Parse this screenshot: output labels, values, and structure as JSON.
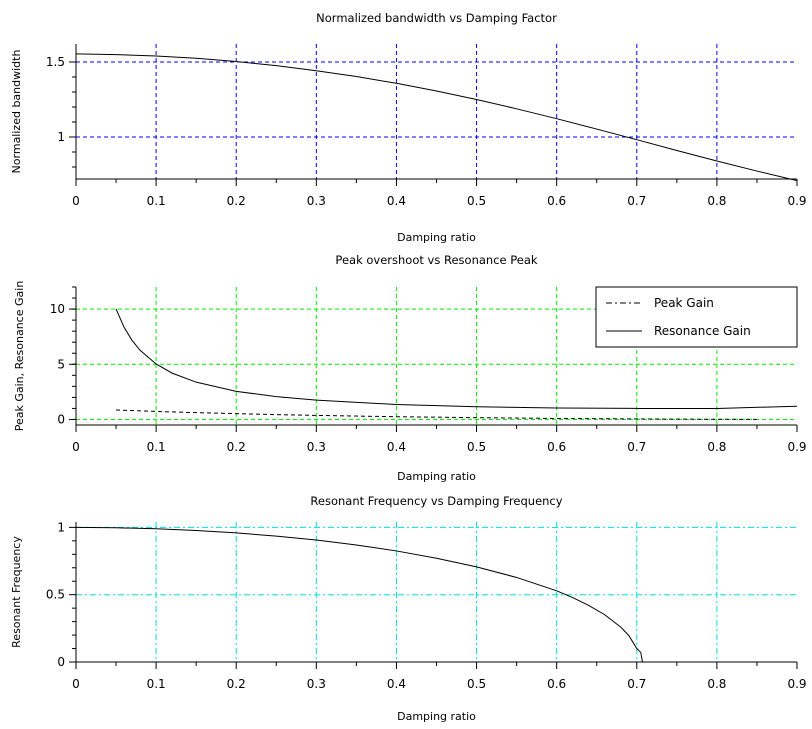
{
  "chart_data": [
    {
      "type": "line",
      "title": "Normalized bandwidth vs Damping Factor",
      "xlabel": "Damping ratio",
      "ylabel": "Normalized bandwidth",
      "xlim": [
        0,
        0.9
      ],
      "ylim": [
        0.72,
        1.62
      ],
      "x_ticks": [
        "0",
        "0.1",
        "0.2",
        "0.3",
        "0.4",
        "0.5",
        "0.6",
        "0.7",
        "0.8",
        "0.9"
      ],
      "y_ticks": [
        {
          "value": 1,
          "label": "1"
        },
        {
          "value": 1.5,
          "label": "1.5"
        }
      ],
      "grid": true,
      "grid_color": "#0000ff",
      "grid_style": "dashed",
      "legend": null,
      "series": [
        {
          "color": "#000000",
          "style": "solid",
          "x": [
            0,
            0.05,
            0.1,
            0.15,
            0.2,
            0.25,
            0.3,
            0.35,
            0.4,
            0.45,
            0.5,
            0.55,
            0.6,
            0.65,
            0.7,
            0.75,
            0.8,
            0.85,
            0.9
          ],
          "y": [
            1.554,
            1.549,
            1.54,
            1.525,
            1.503,
            1.476,
            1.442,
            1.403,
            1.358,
            1.307,
            1.25,
            1.188,
            1.122,
            1.053,
            0.982,
            0.91,
            0.84,
            0.773,
            0.709
          ]
        }
      ]
    },
    {
      "type": "line",
      "title": "Peak overshoot  vs  Resonance Peak",
      "xlabel": "Damping ratio",
      "ylabel": "Peak Gain, Resonance Gain",
      "xlim": [
        0,
        0.9
      ],
      "ylim": [
        -0.5,
        12
      ],
      "x_ticks": [
        "0",
        "0.1",
        "0.2",
        "0.3",
        "0.4",
        "0.5",
        "0.6",
        "0.7",
        "0.8",
        "0.9"
      ],
      "y_ticks": [
        {
          "value": 0,
          "label": "0"
        },
        {
          "value": 5,
          "label": "5"
        },
        {
          "value": 10,
          "label": "10"
        }
      ],
      "grid": true,
      "grid_color": "#00ee00",
      "grid_style": "dashed",
      "legend": "top-right",
      "series": [
        {
          "name": "Peak Gain",
          "color": "#000000",
          "style": "dashed",
          "x": [
            0.05,
            0.1,
            0.15,
            0.2,
            0.25,
            0.3,
            0.35,
            0.4,
            0.45,
            0.5,
            0.55,
            0.6,
            0.65,
            0.7,
            0.75,
            0.8,
            0.85
          ],
          "y": [
            0.855,
            0.73,
            0.62,
            0.53,
            0.44,
            0.37,
            0.31,
            0.25,
            0.21,
            0.16,
            0.13,
            0.09,
            0.07,
            0.05,
            0.03,
            0.02,
            0.01
          ]
        },
        {
          "name": "Resonance Gain",
          "color": "#000000",
          "style": "solid",
          "x": [
            0.05,
            0.06,
            0.07,
            0.08,
            0.1,
            0.12,
            0.15,
            0.2,
            0.25,
            0.3,
            0.4,
            0.5,
            0.6,
            0.7,
            0.8,
            0.9
          ],
          "y": [
            10.01,
            8.35,
            7.16,
            6.27,
            5.03,
            4.2,
            3.38,
            2.55,
            2.07,
            1.75,
            1.36,
            1.15,
            1.04,
            1.0,
            1.0,
            1.2
          ]
        }
      ]
    },
    {
      "type": "line",
      "title": "Resonant Frequency vs Damping Frequency",
      "xlabel": "Damping ratio",
      "ylabel": "Resonant Frequency",
      "xlim": [
        0,
        0.9
      ],
      "ylim": [
        0,
        1.04
      ],
      "x_ticks": [
        "0",
        "0.1",
        "0.2",
        "0.3",
        "0.4",
        "0.5",
        "0.6",
        "0.7",
        "0.8",
        "0.9"
      ],
      "y_ticks": [
        {
          "value": 0,
          "label": "0"
        },
        {
          "value": 0.5,
          "label": "0.5"
        },
        {
          "value": 1,
          "label": "1"
        }
      ],
      "grid": true,
      "grid_color": "#00dddd",
      "grid_style": "dashdot",
      "legend": null,
      "series": [
        {
          "color": "#000000",
          "style": "solid",
          "x": [
            0,
            0.05,
            0.1,
            0.15,
            0.2,
            0.25,
            0.3,
            0.35,
            0.4,
            0.45,
            0.5,
            0.55,
            0.6,
            0.62,
            0.64,
            0.66,
            0.68,
            0.69,
            0.7,
            0.705,
            0.7071
          ],
          "y": [
            1.0,
            0.997,
            0.99,
            0.977,
            0.959,
            0.935,
            0.906,
            0.869,
            0.825,
            0.771,
            0.707,
            0.628,
            0.529,
            0.479,
            0.42,
            0.351,
            0.259,
            0.197,
            0.1,
            0.071,
            0.0
          ]
        }
      ]
    }
  ]
}
